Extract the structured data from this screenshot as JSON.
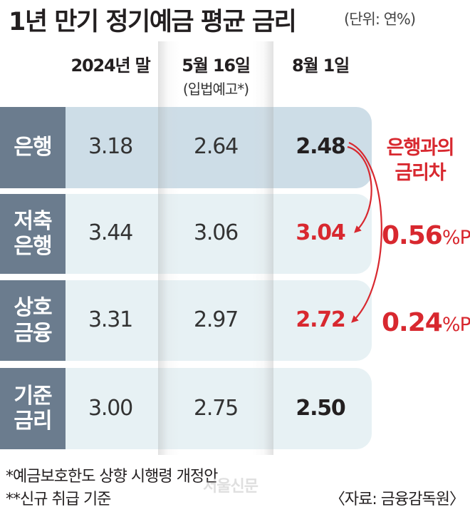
{
  "header": {
    "title": "1년 만기 정기예금 평균 금리",
    "unit": "(단위: 연%)"
  },
  "chart_data": {
    "type": "table",
    "columns": [
      {
        "label": "2024년 말",
        "sub": ""
      },
      {
        "label": "5월 16일",
        "sub": "(입법예고*)"
      },
      {
        "label": "8월 1일",
        "sub": ""
      }
    ],
    "rows": [
      {
        "label_lines": [
          "은행"
        ],
        "values": [
          "3.18",
          "2.64",
          "2.48"
        ],
        "highlight": false
      },
      {
        "label_lines": [
          "저축",
          "은행"
        ],
        "values": [
          "3.44",
          "3.06",
          "3.04"
        ],
        "highlight": true
      },
      {
        "label_lines": [
          "상호",
          "금융"
        ],
        "values": [
          "3.31",
          "2.97",
          "2.72"
        ],
        "highlight": true
      },
      {
        "label_lines": [
          "기준",
          "금리"
        ],
        "values": [
          "3.00",
          "2.75",
          "2.50"
        ],
        "highlight": false
      }
    ],
    "difference": {
      "title_lines": [
        "은행과의",
        "금리차"
      ],
      "items": [
        {
          "value": "0.56",
          "unit": "%P"
        },
        {
          "value": "0.24",
          "unit": "%P"
        }
      ]
    }
  },
  "footer": {
    "note1": "*예금보호한도 상향 시행령 개정안",
    "note2": "**신규 취급 기준",
    "source": "〈자료: 금융감독원〉",
    "watermark": "서울신문"
  },
  "colors": {
    "accent_red": "#d8282f",
    "label_bg": "#6b7c8e",
    "row_bg_bank": "#cddde7",
    "row_bg": "#e7f1f4"
  }
}
